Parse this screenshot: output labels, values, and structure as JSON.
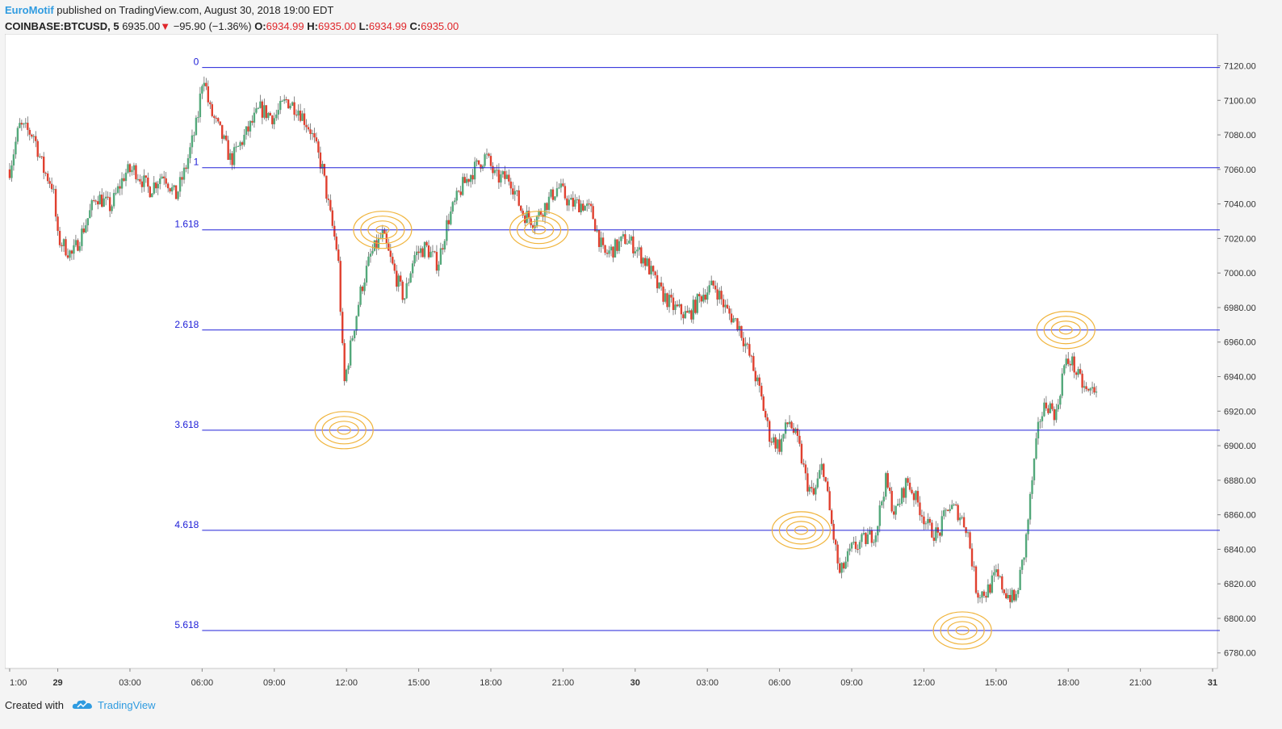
{
  "header": {
    "author": "EuroMotif",
    "published_text": "published on TradingView.com, August 30, 2018 19:00 EDT",
    "symbol": "COINBASE:BTCUSD, 5",
    "last_price": "6935.00",
    "change": "−95.90 (−1.36%)",
    "open_label": "O:",
    "open_value": "6934.99",
    "high_label": "H:",
    "high_value": "6935.00",
    "low_label": "L:",
    "low_value": "6934.99",
    "close_label": "C:",
    "close_value": "6935.00"
  },
  "footer": {
    "created_with": "Created with",
    "brand": "TradingView"
  },
  "colors": {
    "up": "#53a87a",
    "down": "#e0402f",
    "fib_line": "#2020d8",
    "fib_label": "#2020d8",
    "circle": "#f0b43c",
    "axis_text": "#333333",
    "background": "#ffffff"
  },
  "chart_data": {
    "type": "candlestick",
    "x_tick_labels": [
      "1:00",
      "29",
      "03:00",
      "06:00",
      "09:00",
      "12:00",
      "15:00",
      "18:00",
      "21:00",
      "30",
      "03:00",
      "06:00",
      "09:00",
      "12:00",
      "15:00",
      "18:00",
      "21:00",
      "31"
    ],
    "x_ticks_hours": [
      -2,
      0,
      3,
      6,
      9,
      12,
      15,
      18,
      21,
      24,
      27,
      30,
      33,
      36,
      39,
      42,
      45,
      48
    ],
    "x_range_hours": [
      -2.2,
      48.2
    ],
    "y_tick_labels": [
      "6780.00",
      "6800.00",
      "6820.00",
      "6840.00",
      "6860.00",
      "6880.00",
      "6900.00",
      "6920.00",
      "6940.00",
      "6960.00",
      "6980.00",
      "7000.00",
      "7020.00",
      "7040.00",
      "7060.00",
      "7080.00",
      "7100.00",
      "7120.00"
    ],
    "y_ticks": [
      6780,
      6800,
      6820,
      6840,
      6860,
      6880,
      6900,
      6920,
      6940,
      6960,
      6980,
      7000,
      7020,
      7040,
      7060,
      7080,
      7100,
      7120
    ],
    "y_range": [
      6771,
      7138
    ],
    "fib_levels": [
      {
        "label": "0",
        "price": 7119
      },
      {
        "label": "1",
        "price": 7061
      },
      {
        "label": "1.618",
        "price": 7025
      },
      {
        "label": "2.618",
        "price": 6967
      },
      {
        "label": "3.618",
        "price": 6909
      },
      {
        "label": "4.618",
        "price": 6851
      },
      {
        "label": "5.618",
        "price": 6793
      }
    ],
    "fib_start_hours": 6.0,
    "fib_end_hours": 48.3,
    "circles": [
      {
        "hour": 11.9,
        "price": 6909
      },
      {
        "hour": 13.5,
        "price": 7025
      },
      {
        "hour": 20.0,
        "price": 7025
      },
      {
        "hour": 30.9,
        "price": 6851
      },
      {
        "hour": 37.6,
        "price": 6793
      },
      {
        "hour": 41.9,
        "price": 6967
      }
    ],
    "price_path": [
      [
        -2.0,
        7060
      ],
      [
        -1.6,
        7085
      ],
      [
        -1.0,
        7080
      ],
      [
        -0.6,
        7060
      ],
      [
        -0.2,
        7050
      ],
      [
        0.0,
        7020
      ],
      [
        0.6,
        7010
      ],
      [
        1.2,
        7030
      ],
      [
        1.6,
        7045
      ],
      [
        2.2,
        7038
      ],
      [
        2.8,
        7058
      ],
      [
        3.2,
        7060
      ],
      [
        3.8,
        7048
      ],
      [
        4.4,
        7058
      ],
      [
        4.9,
        7044
      ],
      [
        5.3,
        7060
      ],
      [
        5.8,
        7088
      ],
      [
        6.05,
        7117
      ],
      [
        6.3,
        7095
      ],
      [
        6.8,
        7080
      ],
      [
        7.2,
        7065
      ],
      [
        7.8,
        7080
      ],
      [
        8.4,
        7095
      ],
      [
        9.0,
        7090
      ],
      [
        9.5,
        7100
      ],
      [
        10.0,
        7095
      ],
      [
        10.5,
        7083
      ],
      [
        11.0,
        7060
      ],
      [
        11.3,
        7035
      ],
      [
        11.65,
        7010
      ],
      [
        11.9,
        6935
      ],
      [
        12.2,
        6960
      ],
      [
        12.6,
        6990
      ],
      [
        13.0,
        7010
      ],
      [
        13.5,
        7022
      ],
      [
        14.0,
        7000
      ],
      [
        14.4,
        6985
      ],
      [
        14.8,
        7010
      ],
      [
        15.3,
        7015
      ],
      [
        15.8,
        7005
      ],
      [
        16.2,
        7030
      ],
      [
        16.8,
        7050
      ],
      [
        17.3,
        7060
      ],
      [
        17.8,
        7068
      ],
      [
        18.2,
        7055
      ],
      [
        18.8,
        7055
      ],
      [
        19.3,
        7035
      ],
      [
        19.8,
        7030
      ],
      [
        20.3,
        7040
      ],
      [
        20.8,
        7050
      ],
      [
        21.3,
        7040
      ],
      [
        21.8,
        7040
      ],
      [
        22.2,
        7035
      ],
      [
        22.7,
        7010
      ],
      [
        23.2,
        7015
      ],
      [
        23.6,
        7020
      ],
      [
        24.0,
        7015
      ],
      [
        24.5,
        7005
      ],
      [
        25.0,
        6990
      ],
      [
        25.6,
        6980
      ],
      [
        26.2,
        6975
      ],
      [
        26.8,
        6988
      ],
      [
        27.3,
        6993
      ],
      [
        27.8,
        6978
      ],
      [
        28.3,
        6970
      ],
      [
        28.8,
        6950
      ],
      [
        29.2,
        6930
      ],
      [
        29.6,
        6905
      ],
      [
        30.0,
        6900
      ],
      [
        30.4,
        6915
      ],
      [
        30.8,
        6900
      ],
      [
        31.1,
        6880
      ],
      [
        31.4,
        6870
      ],
      [
        31.8,
        6890
      ],
      [
        32.1,
        6860
      ],
      [
        32.5,
        6825
      ],
      [
        33.0,
        6840
      ],
      [
        33.5,
        6845
      ],
      [
        34.0,
        6850
      ],
      [
        34.4,
        6880
      ],
      [
        34.8,
        6860
      ],
      [
        35.3,
        6880
      ],
      [
        35.8,
        6865
      ],
      [
        36.2,
        6852
      ],
      [
        36.6,
        6848
      ],
      [
        37.0,
        6865
      ],
      [
        37.4,
        6862
      ],
      [
        37.8,
        6852
      ],
      [
        38.2,
        6815
      ],
      [
        38.6,
        6815
      ],
      [
        39.0,
        6825
      ],
      [
        39.4,
        6815
      ],
      [
        39.8,
        6810
      ],
      [
        40.2,
        6840
      ],
      [
        40.5,
        6880
      ],
      [
        40.8,
        6915
      ],
      [
        41.1,
        6925
      ],
      [
        41.5,
        6918
      ],
      [
        41.8,
        6945
      ],
      [
        42.1,
        6950
      ],
      [
        42.4,
        6940
      ],
      [
        42.8,
        6930
      ],
      [
        43.2,
        6935
      ]
    ]
  }
}
